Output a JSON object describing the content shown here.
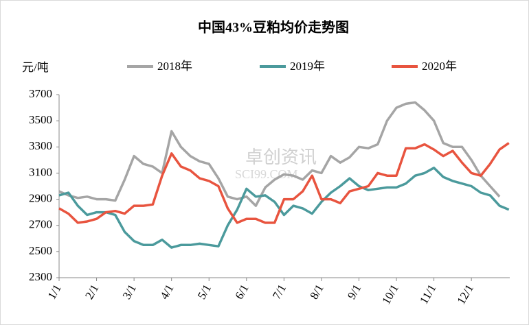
{
  "chart_data": {
    "type": "line",
    "title": "中国43%豆粕均价走势图",
    "y_label": "元/吨",
    "watermark": [
      "卓创资讯",
      "SCI99.COM"
    ],
    "categories": [
      "1/1",
      null,
      null,
      null,
      "2/1",
      null,
      null,
      null,
      "3/1",
      null,
      null,
      null,
      "4/1",
      null,
      null,
      null,
      "5/1",
      null,
      null,
      null,
      "6/1",
      null,
      null,
      null,
      "7/1",
      null,
      null,
      null,
      "8/1",
      null,
      null,
      null,
      "9/1",
      null,
      null,
      null,
      "10/1",
      null,
      null,
      null,
      "11/1",
      null,
      null,
      null,
      "12/1",
      null,
      null,
      null,
      null
    ],
    "series": [
      {
        "name": "2018年",
        "color": "#a5a5a5",
        "values": [
          2960,
          2930,
          2910,
          2920,
          2900,
          2900,
          2890,
          3050,
          3230,
          3170,
          3150,
          3100,
          3420,
          3300,
          3230,
          3190,
          3170,
          3060,
          2920,
          2900,
          2920,
          2850,
          2990,
          3050,
          3090,
          3080,
          3050,
          3120,
          3100,
          3230,
          3180,
          3220,
          3300,
          3290,
          3320,
          3500,
          3600,
          3630,
          3640,
          3580,
          3500,
          3330,
          3300,
          3300,
          3200,
          3080,
          3000,
          2920,
          null
        ]
      },
      {
        "name": "2019年",
        "color": "#4b9a9c",
        "values": [
          2930,
          2950,
          2850,
          2780,
          2800,
          2800,
          2780,
          2650,
          2580,
          2550,
          2550,
          2590,
          2530,
          2550,
          2550,
          2560,
          2550,
          2540,
          2700,
          2820,
          2980,
          2920,
          2930,
          2880,
          2780,
          2850,
          2830,
          2790,
          2880,
          2950,
          3000,
          3060,
          3000,
          2970,
          2980,
          2990,
          2990,
          3020,
          3080,
          3100,
          3140,
          3070,
          3040,
          3020,
          3000,
          2950,
          2930,
          2850,
          2820
        ]
      },
      {
        "name": "2020年",
        "color": "#e8543f",
        "values": [
          2830,
          2790,
          2720,
          2730,
          2750,
          2800,
          2810,
          2790,
          2850,
          2850,
          2860,
          3080,
          3250,
          3150,
          3120,
          3060,
          3040,
          3000,
          2830,
          2720,
          2750,
          2750,
          2720,
          2720,
          2900,
          2900,
          2960,
          3080,
          2900,
          2900,
          2870,
          2960,
          2980,
          3000,
          3100,
          3080,
          3080,
          3290,
          3290,
          3320,
          3280,
          3230,
          3270,
          3180,
          3100,
          3080,
          3170,
          3280,
          3330
        ]
      }
    ],
    "ylim": [
      2300,
      3700
    ],
    "yticks": [
      2300,
      2500,
      2700,
      2900,
      3100,
      3300,
      3500,
      3700
    ],
    "grid": false
  }
}
